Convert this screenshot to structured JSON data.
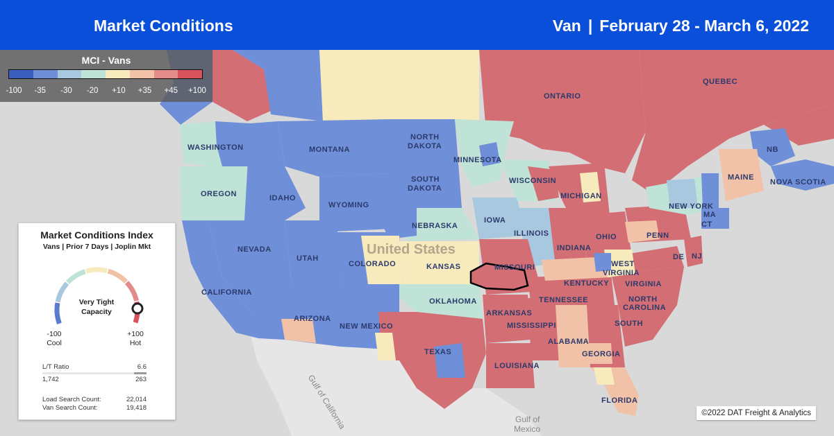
{
  "header": {
    "title": "Market Conditions",
    "equipment": "Van",
    "separator": "|",
    "date_range": "February 28 - March 6, 2022"
  },
  "legend": {
    "title": "MCI - Vans",
    "bins": [
      {
        "color": "#3a5fbf"
      },
      {
        "color": "#6f8fd9"
      },
      {
        "color": "#a8c8e0"
      },
      {
        "color": "#bfe3d6"
      },
      {
        "color": "#f7ebbe"
      },
      {
        "color": "#f2c2a8"
      },
      {
        "color": "#e38b8b"
      },
      {
        "color": "#d9535f"
      }
    ],
    "ticks": [
      "-100",
      "-35",
      "-30",
      "-20",
      "+10",
      "+35",
      "+45",
      "+100"
    ]
  },
  "map_labels": {
    "ontario": "ONTARIO",
    "quebec": "QUEBEC",
    "washington": "WASHINGTON",
    "montana": "MONTANA",
    "north_dakota_1": "NORTH",
    "north_dakota_2": "DAKOTA",
    "minnesota": "MINNESOTA",
    "south_dakota_1": "SOUTH",
    "south_dakota_2": "DAKOTA",
    "oregon": "OREGON",
    "idaho": "IDAHO",
    "wyoming": "WYOMING",
    "nebraska": "NEBRASKA",
    "iowa": "IOWA",
    "wisconsin": "WISCONSIN",
    "michigan": "MICHIGAN",
    "illinois": "ILLINOIS",
    "indiana": "INDIANA",
    "ohio": "OHIO",
    "nevada": "NEVADA",
    "utah": "UTAH",
    "colorado": "COLORADO",
    "kansas": "KANSAS",
    "missouri": "MISSOURI",
    "kentucky": "KENTUCKY",
    "west_virginia_1": "WEST",
    "west_virginia_2": "VIRGINIA",
    "virginia": "VIRGINIA",
    "penn": "PENN",
    "new_york": "NEW YORK",
    "maine": "MAINE",
    "nb": "NB",
    "nova_scotia": "NOVA SCOTIA",
    "ma": "MA",
    "ct": "CT",
    "nj": "NJ",
    "de": "DE",
    "california": "CALIFORNIA",
    "arizona": "ARIZONA",
    "new_mexico": "NEW MEXICO",
    "oklahoma": "OKLAHOMA",
    "arkansas": "ARKANSAS",
    "tennessee": "TENNESSEE",
    "north_carolina_1": "NORTH",
    "north_carolina_2": "CAROLINA",
    "south_carolina": "SOUTH",
    "mississippi": "MISSISSIPPI",
    "alabama": "ALABAMA",
    "georgia": "GEORGIA",
    "texas": "TEXAS",
    "louisiana": "LOUISIANA",
    "florida": "FLORIDA",
    "united_states": "United States",
    "gulf_of_california": "Gulf of California",
    "gulf_of_mexico_1": "Gulf of",
    "gulf_of_mexico_2": "Mexico"
  },
  "selected_market": "Joplin",
  "card": {
    "title": "Market Conditions Index",
    "subtitle": "Vans | Prior 7 Days | Joplin Mkt",
    "gauge_value": 80,
    "status_line1": "Very Tight",
    "status_line2": "Capacity",
    "min_value": "-100",
    "min_label": "Cool",
    "max_value": "+100",
    "max_label": "Hot",
    "lt_ratio_label": "L/T Ratio",
    "lt_ratio_value": "6.6",
    "loads": "1,742",
    "trucks": "263",
    "load_search_label": "Load Search Count:",
    "load_search_value": "22,014",
    "van_search_label": "Van Search Count:",
    "van_search_value": "19,418"
  },
  "copyright": "©2022 DAT Freight & Analytics",
  "colors": {
    "header_bg": "#0a4fd9",
    "water": "#d9d9d9",
    "land": "#e8e8e8",
    "hot": "#d26e74",
    "cool": "#6f8fd9"
  }
}
